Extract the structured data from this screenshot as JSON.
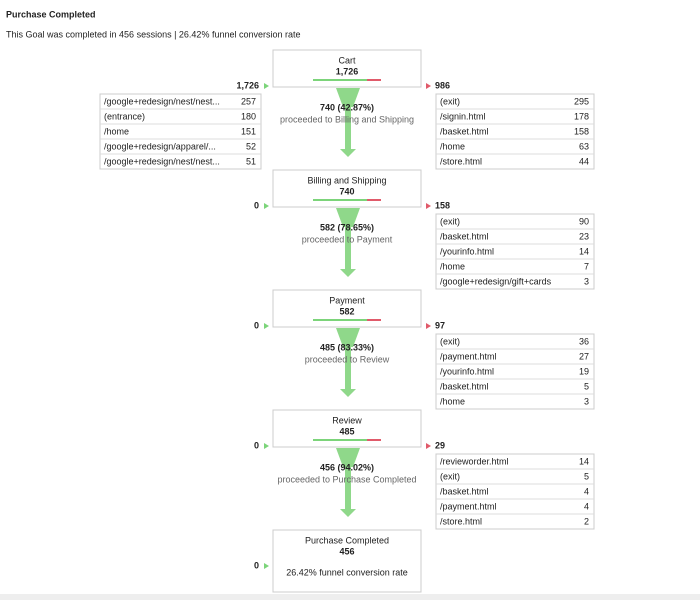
{
  "header": {
    "title": "Purchase Completed",
    "subtitle": "This Goal was completed in 456 sessions | 26.42% funnel conversion rate"
  },
  "steps": [
    {
      "name": "Cart",
      "count": "1,726",
      "entrances": "1,726",
      "exits": "986",
      "entrance_rows": [
        [
          "/google+redesign/nest/nest...",
          "257"
        ],
        [
          "(entrance)",
          "180"
        ],
        [
          "/home",
          "151"
        ],
        [
          "/google+redesign/apparel/...",
          "52"
        ],
        [
          "/google+redesign/nest/nest...",
          "51"
        ]
      ],
      "exit_rows": [
        [
          "(exit)",
          "295"
        ],
        [
          "/signin.html",
          "178"
        ],
        [
          "/basket.html",
          "158"
        ],
        [
          "/home",
          "63"
        ],
        [
          "/store.html",
          "44"
        ]
      ],
      "proceed": "740 (42.87%)",
      "proceed_text": "proceeded to Billing and Shipping"
    },
    {
      "name": "Billing and Shipping",
      "count": "740",
      "entrances": "0",
      "exits": "158",
      "exit_rows": [
        [
          "(exit)",
          "90"
        ],
        [
          "/basket.html",
          "23"
        ],
        [
          "/yourinfo.html",
          "14"
        ],
        [
          "/home",
          "7"
        ],
        [
          "/google+redesign/gift+cards",
          "3"
        ]
      ],
      "proceed": "582 (78.65%)",
      "proceed_text": "proceeded to Payment"
    },
    {
      "name": "Payment",
      "count": "582",
      "entrances": "0",
      "exits": "97",
      "exit_rows": [
        [
          "(exit)",
          "36"
        ],
        [
          "/payment.html",
          "27"
        ],
        [
          "/yourinfo.html",
          "19"
        ],
        [
          "/basket.html",
          "5"
        ],
        [
          "/home",
          "3"
        ]
      ],
      "proceed": "485 (83.33%)",
      "proceed_text": "proceeded to Review"
    },
    {
      "name": "Review",
      "count": "485",
      "entrances": "0",
      "exits": "29",
      "exit_rows": [
        [
          "/revieworder.html",
          "14"
        ],
        [
          "(exit)",
          "5"
        ],
        [
          "/basket.html",
          "4"
        ],
        [
          "/payment.html",
          "4"
        ],
        [
          "/store.html",
          "2"
        ]
      ],
      "proceed": "456 (94.02%)",
      "proceed_text": "proceeded to Purchase Completed"
    },
    {
      "name": "Purchase Completed",
      "count": "456",
      "entrances": "0",
      "note": "26.42% funnel conversion rate"
    }
  ]
}
